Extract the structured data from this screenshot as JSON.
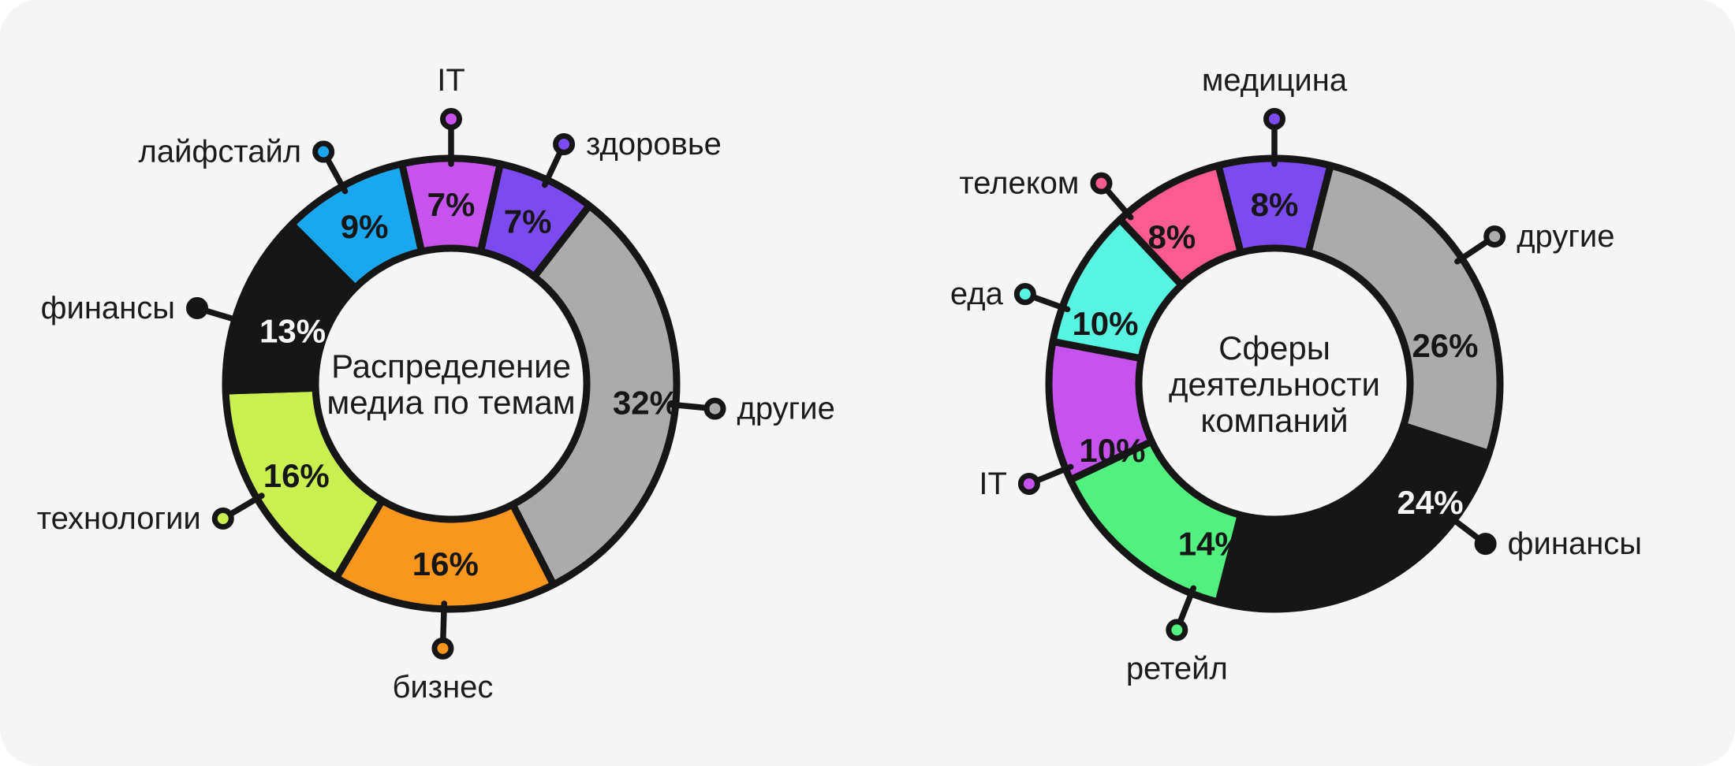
{
  "theme": {
    "canvas_bg": "#ffffff",
    "panel_bg": "#f5f5f5",
    "outline": "#161616",
    "label_color": "#1b1b1b",
    "value_label_on_dark": "#f5f5f5"
  },
  "chart_data": [
    {
      "type": "pie",
      "subtype": "donut",
      "title": "Распределение медиа по темам",
      "title_lines": [
        "Распределение",
        "медиа по темам"
      ],
      "unit": "%",
      "rotation": "first slice centered at 12 o'clock, clockwise",
      "legend_position": "callout labels around ring",
      "categories": [
        "IT",
        "здоровье",
        "другие",
        "бизнес",
        "технологии",
        "финансы",
        "лайфстайл"
      ],
      "values": [
        7,
        7,
        32,
        16,
        16,
        13,
        9
      ],
      "value_labels": [
        "7%",
        "7%",
        "32%",
        "16%",
        "16%",
        "13%",
        "9%"
      ],
      "colors": [
        "#c653ee",
        "#7b4bf0",
        "#ababab",
        "#f9961e",
        "#c9f050",
        "#161616",
        "#1ba7f0"
      ],
      "value_text_colors": [
        "#161616",
        "#161616",
        "#161616",
        "#161616",
        "#161616",
        "#f5f5f5",
        "#161616"
      ]
    },
    {
      "type": "pie",
      "subtype": "donut",
      "title": "Сферы деятельности компаний",
      "title_lines": [
        "Сферы",
        "деятельности",
        "компаний"
      ],
      "unit": "%",
      "rotation": "first slice centered at 12 o'clock, clockwise",
      "legend_position": "callout labels around ring",
      "categories": [
        "медицина",
        "другие",
        "финансы",
        "ретейл",
        "IT",
        "еда",
        "телеком"
      ],
      "values": [
        8,
        26,
        24,
        14,
        10,
        10,
        8
      ],
      "value_labels": [
        "8%",
        "26%",
        "24%",
        "14%",
        "10%",
        "10%",
        "8%"
      ],
      "colors": [
        "#7b4bf0",
        "#ababab",
        "#161616",
        "#52f07e",
        "#c653ee",
        "#57f4e1",
        "#fa5b90"
      ],
      "value_text_colors": [
        "#161616",
        "#161616",
        "#f5f5f5",
        "#161616",
        "#161616",
        "#161616",
        "#161616"
      ]
    }
  ]
}
